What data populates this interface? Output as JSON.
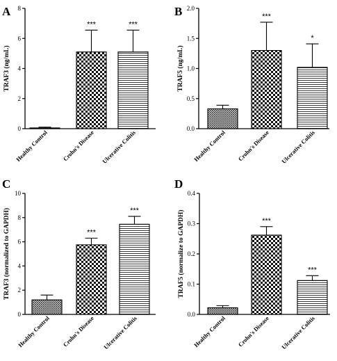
{
  "chart_data": [
    {
      "type": "bar",
      "panel_label": "A",
      "categories": [
        "Healthy Control",
        "Crohn's Disease",
        "Ulcerative Colitis"
      ],
      "values": [
        0.05,
        5.1,
        5.1
      ],
      "errors": [
        0.05,
        1.45,
        1.45
      ],
      "significance": [
        "",
        "***",
        "***"
      ],
      "ylabel": "TRAF3 (ng/mL)",
      "ylim": [
        0,
        8
      ],
      "yticks": [
        "0",
        "2",
        "4",
        "6",
        "8"
      ],
      "patterns": [
        "dense-cross",
        "checker",
        "horizontal"
      ]
    },
    {
      "type": "bar",
      "panel_label": "B",
      "categories": [
        "Healthy Control",
        "Crohn's Disease",
        "Ulcerative Colitis"
      ],
      "values": [
        0.33,
        1.3,
        1.02
      ],
      "errors": [
        0.06,
        0.47,
        0.39
      ],
      "significance": [
        "",
        "***",
        "*"
      ],
      "ylabel": "TRAF5 (ng/mL)",
      "ylim": [
        0,
        2.0
      ],
      "yticks": [
        "0.0",
        "0.5",
        "1.0",
        "1.5",
        "2.0"
      ],
      "patterns": [
        "dense-cross",
        "checker",
        "horizontal"
      ]
    },
    {
      "type": "bar",
      "panel_label": "C",
      "categories": [
        "Healthy Control",
        "Crohn's Disease",
        "Ulcerative Colitis"
      ],
      "values": [
        1.2,
        5.75,
        7.45
      ],
      "errors": [
        0.4,
        0.55,
        0.65
      ],
      "significance": [
        "",
        "***",
        "***"
      ],
      "ylabel": "TRAF3 (normalized to GAPDH)",
      "ylim": [
        0,
        10
      ],
      "yticks": [
        "0",
        "2",
        "4",
        "6",
        "8",
        "10"
      ],
      "patterns": [
        "dense-cross",
        "checker",
        "horizontal"
      ]
    },
    {
      "type": "bar",
      "panel_label": "D",
      "categories": [
        "Healthy Control",
        "Crohn's Disease",
        "Ulcerative Colitis"
      ],
      "values": [
        0.022,
        0.262,
        0.112
      ],
      "errors": [
        0.007,
        0.028,
        0.016
      ],
      "significance": [
        "",
        "***",
        "***"
      ],
      "ylabel": "TRAF5 (normalize to GAPDH)",
      "ylim": [
        0,
        0.4
      ],
      "yticks": [
        "0.0",
        "0.1",
        "0.2",
        "0.3",
        "0.4"
      ],
      "patterns": [
        "dense-cross",
        "checker",
        "horizontal"
      ]
    }
  ]
}
